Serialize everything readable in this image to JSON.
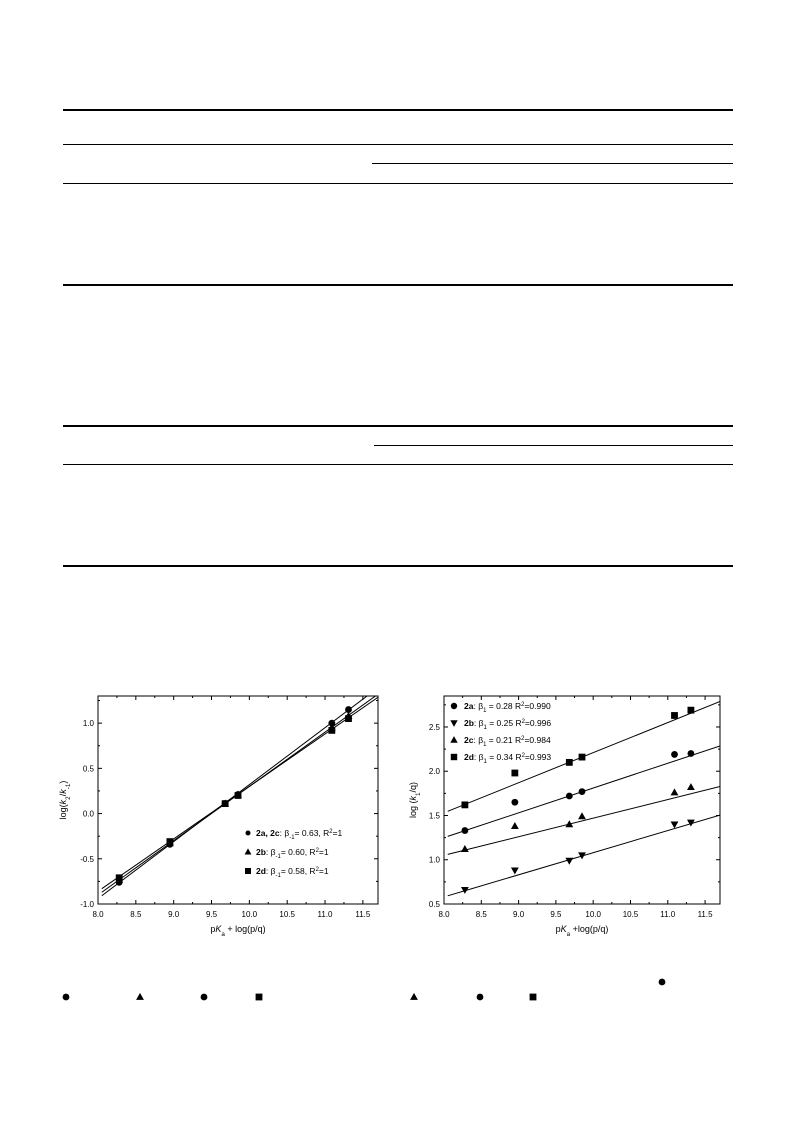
{
  "chart_data": [
    {
      "type": "scatter",
      "xlabel": "pKa + log(p/q)",
      "ylabel": "log(k2/k-1)",
      "xlim": [
        8.0,
        11.7
      ],
      "ylim": [
        -1.0,
        1.3
      ],
      "xticks": [
        "8.0",
        "8.5",
        "9.0",
        "9.5",
        "10.0",
        "10.5",
        "11.0",
        "11.5"
      ],
      "yticks": [
        "-1.0",
        "-0.5",
        "0.0",
        "0.5",
        "1.0"
      ],
      "legend_position": "bottom-right",
      "series": [
        {
          "name": "2a, 2c: β-1= 0.63, R2=1",
          "marker": "circle",
          "x": [
            8.28,
            8.95,
            9.68,
            9.85,
            11.09,
            11.31
          ],
          "y": [
            -0.76,
            -0.34,
            0.11,
            0.21,
            1.0,
            1.15
          ],
          "fit": {
            "slope": 0.63,
            "intercept": -5.98
          }
        },
        {
          "name": "2b: β-1= 0.60, R2=1",
          "marker": "triangle",
          "x": [
            8.28,
            8.95,
            9.68,
            9.85,
            11.09,
            11.31
          ],
          "y": [
            -0.73,
            -0.33,
            0.11,
            0.21,
            0.95,
            1.08
          ],
          "fit": {
            "slope": 0.6,
            "intercept": -5.7
          }
        },
        {
          "name": "2d: β-1= 0.58, R2=1",
          "marker": "square",
          "x": [
            8.28,
            8.95,
            9.68,
            9.85,
            11.09,
            11.31
          ],
          "y": [
            -0.71,
            -0.31,
            0.11,
            0.2,
            0.92,
            1.05
          ],
          "fit": {
            "slope": 0.58,
            "intercept": -5.5
          }
        }
      ]
    },
    {
      "type": "scatter",
      "xlabel": "pKa +log(p/q)",
      "ylabel": "log (k1/q)",
      "xlim": [
        8.0,
        11.7
      ],
      "ylim": [
        0.5,
        2.85
      ],
      "xticks": [
        "8.0",
        "8.5",
        "9.0",
        "9.5",
        "10.0",
        "10.5",
        "11.0",
        "11.5"
      ],
      "yticks": [
        "0.5",
        "1.0",
        "1.5",
        "2.0",
        "2.5"
      ],
      "legend_position": "top-left",
      "series": [
        {
          "name": "2a: β1 = 0.28 R2=0.990",
          "marker": "circle",
          "x": [
            8.28,
            8.95,
            9.68,
            9.85,
            11.09,
            11.31
          ],
          "y": [
            1.33,
            1.65,
            1.72,
            1.77,
            2.19,
            2.2
          ],
          "fit": {
            "slope": 0.28,
            "intercept": -0.99
          }
        },
        {
          "name": "2b: β1 = 0.25 R2=0.996",
          "marker": "triangle-down",
          "x": [
            8.28,
            8.95,
            9.68,
            9.85,
            11.09,
            11.31
          ],
          "y": [
            0.66,
            0.88,
            0.99,
            1.05,
            1.4,
            1.42
          ],
          "fit": {
            "slope": 0.25,
            "intercept": -1.42
          }
        },
        {
          "name": "2c: β1 = 0.21 R2=0.984",
          "marker": "triangle",
          "x": [
            8.28,
            8.95,
            9.68,
            9.85,
            11.09,
            11.31
          ],
          "y": [
            1.12,
            1.38,
            1.4,
            1.49,
            1.76,
            1.82
          ],
          "fit": {
            "slope": 0.21,
            "intercept": -0.63
          }
        },
        {
          "name": "2d: β1 = 0.34 R2=0.993",
          "marker": "square",
          "x": [
            8.28,
            8.95,
            9.68,
            9.85,
            11.09,
            11.31
          ],
          "y": [
            1.62,
            1.98,
            2.1,
            2.16,
            2.63,
            2.69
          ],
          "fit": {
            "slope": 0.34,
            "intercept": -1.19
          }
        }
      ]
    }
  ],
  "colors": {
    "ink": "#000000",
    "background": "#ffffff"
  },
  "caption_symbols": [
    "circle",
    "triangle",
    "circle",
    "square",
    "triangle",
    "circle",
    "square",
    "circle"
  ]
}
